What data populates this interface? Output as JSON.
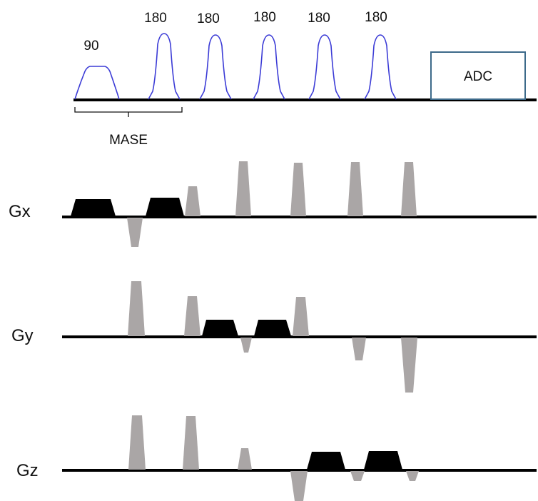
{
  "rf": {
    "pulses": [
      {
        "label": "90"
      },
      {
        "label": "180"
      },
      {
        "label": "180"
      },
      {
        "label": "180"
      },
      {
        "label": "180"
      },
      {
        "label": "180"
      }
    ],
    "adc_label": "ADC",
    "bracket_label": "MASE"
  },
  "axes": {
    "gx": "Gx",
    "gy": "Gy",
    "gz": "Gz"
  },
  "colors": {
    "rf_pulse": "#3b3bd6",
    "adc_box": "#3d6a8a",
    "gradient_gray": "#aaa6a6",
    "gradient_black": "#000000",
    "baseline": "#000000"
  }
}
